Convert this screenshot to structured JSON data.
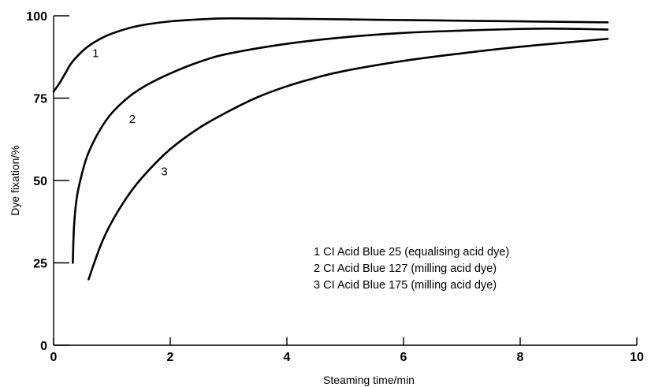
{
  "chart_data": {
    "type": "line",
    "title": "",
    "xlabel": "Steaming time/min",
    "ylabel": "Dye fixation/%",
    "xlim": [
      0,
      10
    ],
    "ylim": [
      0,
      100
    ],
    "x_ticks": [
      "0",
      "2",
      "4",
      "6",
      "8",
      "10"
    ],
    "y_ticks": [
      "0",
      "25",
      "50",
      "75",
      "100"
    ],
    "grid": false,
    "legend_position": "lower-right",
    "series": [
      {
        "name": "1",
        "x": [
          0,
          0.1,
          0.2,
          0.3,
          0.45,
          0.6,
          0.8,
          1.0,
          1.3,
          1.6,
          2.0,
          2.5,
          3.0,
          4.0,
          5.0,
          6.0,
          7.0,
          8.0,
          9.0,
          9.5
        ],
        "y": [
          77,
          79.5,
          82.5,
          85.5,
          88.5,
          90.8,
          93,
          94.6,
          96.3,
          97.4,
          98.3,
          98.9,
          99.2,
          99.1,
          98.9,
          98.7,
          98.5,
          98.3,
          98.1,
          98.0
        ]
      },
      {
        "name": "2",
        "x": [
          0.33,
          0.35,
          0.4,
          0.5,
          0.6,
          0.8,
          1.0,
          1.3,
          1.6,
          2.0,
          2.5,
          3.0,
          4.0,
          5.0,
          6.0,
          7.0,
          8.0,
          8.5,
          9.0,
          9.5
        ],
        "y": [
          25,
          36,
          45,
          53,
          58.5,
          65.5,
          70.5,
          75.5,
          79,
          82.5,
          86,
          88.5,
          91.5,
          93.5,
          94.8,
          95.5,
          96,
          96.1,
          96.0,
          95.8
        ]
      },
      {
        "name": "3",
        "x": [
          0.6,
          0.8,
          1.0,
          1.3,
          1.6,
          2.0,
          2.5,
          3.0,
          3.5,
          4.0,
          4.5,
          5.0,
          6.0,
          7.0,
          8.0,
          9.0,
          9.5
        ],
        "y": [
          20,
          30,
          37.5,
          46,
          52.5,
          59.5,
          66,
          71,
          75.3,
          78.6,
          81.2,
          83.3,
          86.3,
          88.6,
          90.6,
          92.2,
          93.0
        ]
      }
    ],
    "curve_labels": [
      {
        "text": "1",
        "x": 0.72,
        "y": 87.5
      },
      {
        "text": "2",
        "x": 1.35,
        "y": 67.5
      },
      {
        "text": "3",
        "x": 1.9,
        "y": 51.5
      }
    ],
    "legend": [
      "1   CI Acid Blue 25 (equalising acid dye)",
      "2   CI Acid Blue 127 (milling acid dye)",
      "3   CI Acid Blue 175 (milling acid dye)"
    ]
  }
}
